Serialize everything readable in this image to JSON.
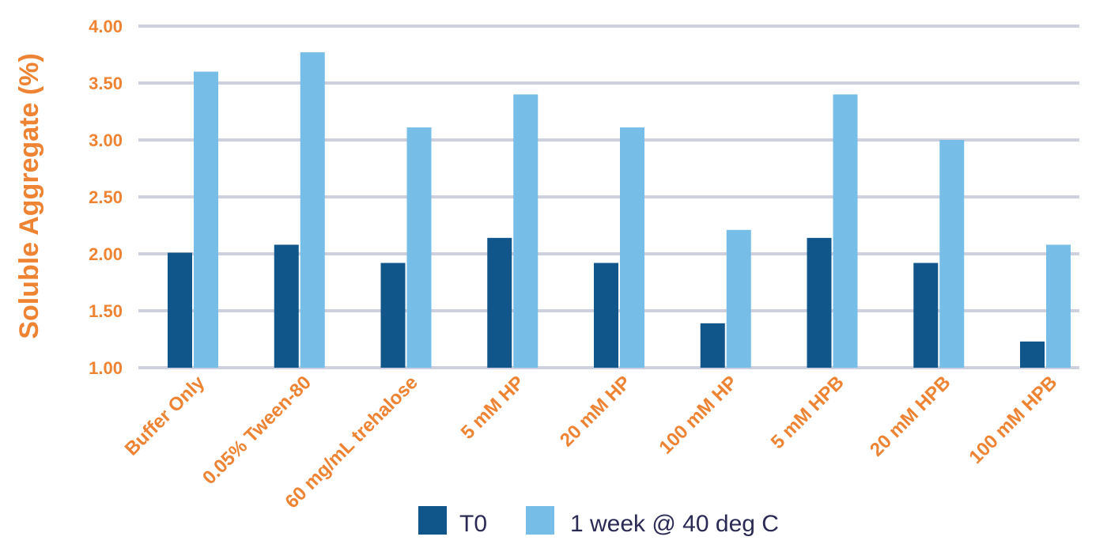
{
  "colors": {
    "accent": "#ee8333",
    "grid": "#cdd0df",
    "series_t0": "#11568a",
    "series_week": "#76bde8",
    "legend_text": "#2a2a55"
  },
  "chart_data": {
    "type": "bar",
    "title": "",
    "xlabel": "",
    "ylabel": "Soluble Aggregate (%)",
    "ylim": [
      1.0,
      4.0
    ],
    "yticks": [
      1.0,
      1.5,
      2.0,
      2.5,
      3.0,
      3.5,
      4.0
    ],
    "ytick_labels": [
      "1.00",
      "1.50",
      "2.00",
      "2.50",
      "3.00",
      "3.50",
      "4.00"
    ],
    "grid": true,
    "legend_position": "bottom-center",
    "categories": [
      "Buffer Only",
      "0.05% Tween-80",
      "60 mg/mL trehalose",
      "5 mM HP",
      "20 mM HP",
      "100 mM HP",
      "5 mM HPB",
      "20 mM HPB",
      "100 mM HPB"
    ],
    "series": [
      {
        "name": "T0",
        "values": [
          2.01,
          2.08,
          1.92,
          2.14,
          1.92,
          1.39,
          2.14,
          1.92,
          1.23
        ]
      },
      {
        "name": "1 week @ 40 deg C",
        "values": [
          3.6,
          3.77,
          3.11,
          3.4,
          3.11,
          2.21,
          3.4,
          3.0,
          2.08
        ]
      }
    ]
  }
}
